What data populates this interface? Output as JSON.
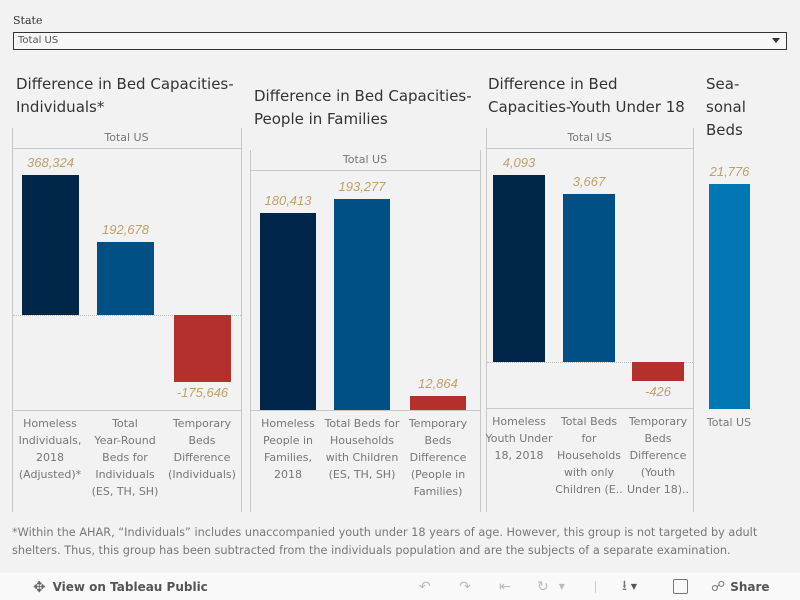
{
  "filter": {
    "label": "State",
    "value": "Total US"
  },
  "colors": {
    "homeless": "#00264a",
    "beds": "#005085",
    "difference": "#b3302c",
    "seasonal": "#0077b5",
    "value_label": "#c0a06a"
  },
  "chart_data": [
    {
      "type": "bar",
      "title": "Difference in Bed Capacities-Individuals*",
      "title_lines": [
        "Difference in Bed Capacities-",
        "Individuals*"
      ],
      "pane_header": "Total US",
      "categories": [
        "Homeless Individuals, 2018 (Adjusted)*",
        "Total Year-Round Beds for Individuals (ES, TH, SH)",
        "Temporary Beds Difference (Individuals)"
      ],
      "category_lines": [
        [
          "Homeless",
          "Individuals,",
          "2018",
          "(Adjusted)*"
        ],
        [
          "Total",
          "Year-Round",
          "Beds for",
          "Individuals",
          "(ES, TH, SH)"
        ],
        [
          "Temporary",
          "Beds",
          "Difference",
          "(Individuals)"
        ]
      ],
      "values": [
        368324,
        192678,
        -175646
      ],
      "value_labels": [
        "368,324",
        "192,678",
        "-175,646"
      ],
      "bar_colors": [
        "homeless",
        "beds",
        "difference"
      ],
      "xlabel": "",
      "ylabel": "",
      "grid": false
    },
    {
      "type": "bar",
      "title": "Difference in Bed Capacities-People in Families",
      "title_lines": [
        "Difference in Bed Capacities-",
        "People in Families"
      ],
      "pane_header": "Total US",
      "categories": [
        "Homeless People in Families, 2018",
        "Total Beds for Households with Children (ES, TH, SH)",
        "Temporary Beds Difference (People in Families)"
      ],
      "category_lines": [
        [
          "Homeless",
          "People in",
          "Families,",
          "2018"
        ],
        [
          "Total Beds for",
          "Households",
          "with Children",
          "(ES, TH, SH)"
        ],
        [
          "Temporary",
          "Beds",
          "Difference",
          "(People in",
          "Families)"
        ]
      ],
      "values": [
        180413,
        193277,
        12864
      ],
      "value_labels": [
        "180,413",
        "193,277",
        "12,864"
      ],
      "bar_colors": [
        "homeless",
        "beds",
        "difference"
      ],
      "xlabel": "",
      "ylabel": "",
      "grid": false
    },
    {
      "type": "bar",
      "title": "Difference in Bed Capacities-Youth Under 18",
      "title_lines": [
        "Difference in Bed",
        "Capacities-Youth Under 18"
      ],
      "pane_header": "Total US",
      "categories": [
        "Homeless Youth Under 18, 2018",
        "Total Beds for Households with only Children (E..",
        "Temporary Beds Difference (Youth Under 18).."
      ],
      "category_lines": [
        [
          "Homeless",
          "Youth Under",
          "18, 2018"
        ],
        [
          "Total Beds",
          "for",
          "Households",
          "with only",
          "Children (E.."
        ],
        [
          "Temporary",
          "Beds",
          "Difference",
          "(Youth",
          "Under 18).."
        ]
      ],
      "values": [
        4093,
        3667,
        -426
      ],
      "value_labels": [
        "4,093",
        "3,667",
        "-426"
      ],
      "bar_colors": [
        "homeless",
        "beds",
        "difference"
      ],
      "xlabel": "",
      "ylabel": "",
      "grid": false
    },
    {
      "type": "bar",
      "title": "Seasonal Beds",
      "title_lines": [
        "Sea-",
        "sonal",
        "Beds"
      ],
      "categories": [
        "Total US"
      ],
      "category_lines": [
        [
          "Total US"
        ]
      ],
      "values": [
        21776
      ],
      "value_labels": [
        "21,776"
      ],
      "bar_colors": [
        "seasonal"
      ],
      "xlabel": "",
      "ylabel": "",
      "grid": false
    }
  ],
  "footnote": "*Within the AHAR, “Individuals” includes unaccompanied youth under 18 years of age.  However, this group is not targeted by adult shelters.  Thus, this group has been subtracted from the individuals population and are the subjects of a separate examination.",
  "toolbar": {
    "view_label": "View on Tableau Public",
    "share_label": "Share",
    "icons": [
      "tableau-logo-icon",
      "undo-icon",
      "redo-icon",
      "revert-icon",
      "refresh-icon",
      "download-icon",
      "fullscreen-icon",
      "share-icon"
    ]
  }
}
